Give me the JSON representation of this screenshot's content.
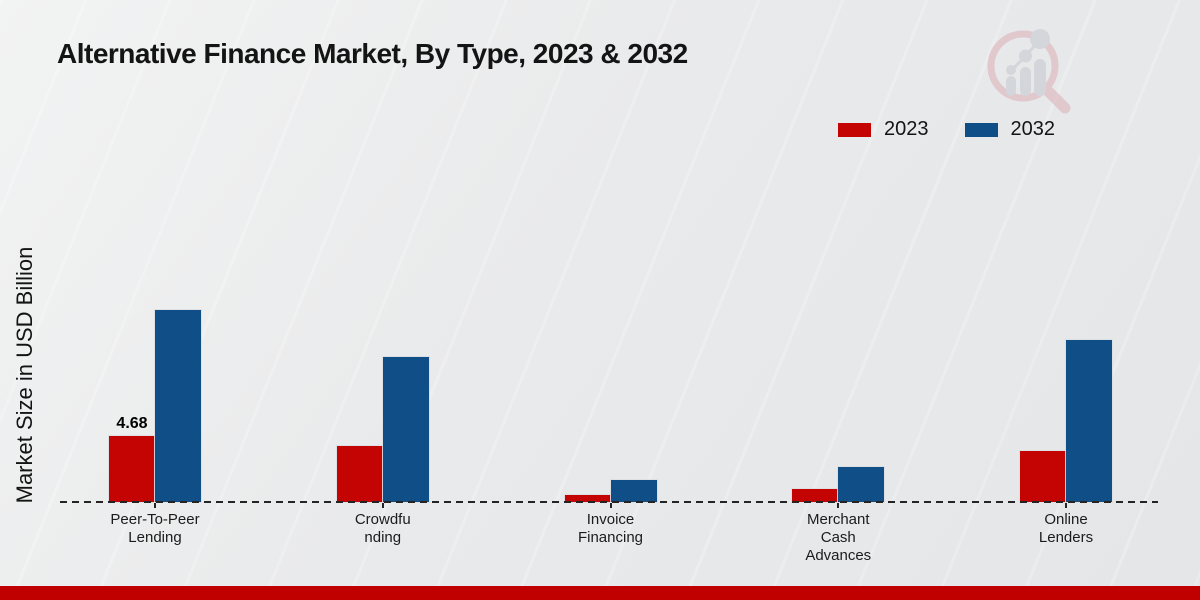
{
  "canvas": {
    "background": "#e9eaeb",
    "footer_color": "#c00000"
  },
  "watermark": {
    "icon": "magnifier-bar-chart-icon"
  },
  "chart_data": {
    "type": "bar",
    "title": "Alternative Finance Market, By Type, 2023 & 2032",
    "ylabel": "Market Size in USD Billion",
    "categories": [
      "Peer-To-Peer Lending",
      "Crowdfunding",
      "Invoice Financing",
      "Merchant Cash Advances",
      "Online Lenders"
    ],
    "category_label_lines": [
      [
        "Peer-To-Peer",
        "Lending"
      ],
      [
        "Crowdfu",
        "nding"
      ],
      [
        "Invoice",
        "Financing"
      ],
      [
        "Merchant",
        "Cash",
        "Advances"
      ],
      [
        "Online",
        "Lenders"
      ]
    ],
    "series": [
      {
        "name": "2023",
        "color": "#c40303",
        "values": [
          4.68,
          3.97,
          0.5,
          0.9,
          3.62
        ],
        "data_labels": [
          "4.68",
          "",
          "",
          "",
          ""
        ]
      },
      {
        "name": "2032",
        "color": "#0f4e87",
        "values": [
          13.62,
          10.28,
          1.55,
          2.45,
          11.49
        ],
        "data_labels": [
          "",
          "",
          "",
          "",
          ""
        ]
      }
    ],
    "ylim": [
      0,
      15
    ],
    "grid": false,
    "legend_position": "top-right",
    "baseline_style": "dashed"
  }
}
